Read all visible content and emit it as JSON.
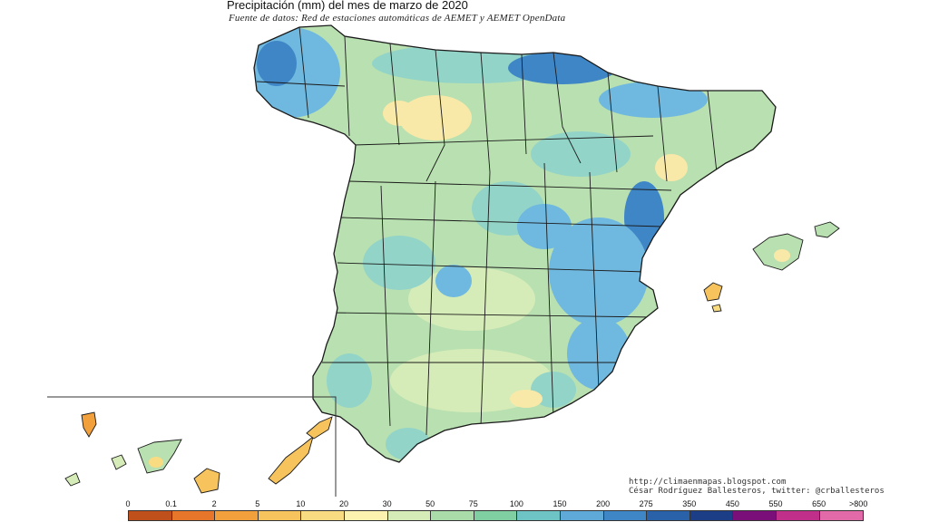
{
  "title": "Precipitación (mm) del mes de marzo  de 2020",
  "subtitle": "Fuente de datos: Red de estaciones automáticas de AEMET y AEMET OpenData",
  "credits": {
    "blog": "http://climaenmapas.blogspot.com",
    "author": "César Rodríguez Ballesteros, twitter: @crballesteros"
  },
  "legend": {
    "ticks": [
      "0",
      "0.1",
      "2",
      "5",
      "10",
      "20",
      "30",
      "50",
      "75",
      "100",
      "150",
      "200",
      "275",
      "350",
      "450",
      "550",
      "650",
      ">800"
    ],
    "colors": [
      "#c0501b",
      "#e8762a",
      "#f2a03b",
      "#f6c35c",
      "#f9dc82",
      "#fbf2b0",
      "#d6ecb8",
      "#a9dca8",
      "#80cfa2",
      "#6ec3c5",
      "#5fa9d8",
      "#3f86c7",
      "#2a62a9",
      "#1c3e86",
      "#7a0f7a",
      "#c0308a",
      "#e36aa8"
    ]
  },
  "colors": {
    "dry": "#f9e9a8",
    "moderate": "#b9e0b0",
    "wet": "#93d4c8",
    "very_wet": "#6fb8df",
    "heavy": "#3f86c7",
    "sea": "#ffffff",
    "border": "#1a1a1a"
  }
}
